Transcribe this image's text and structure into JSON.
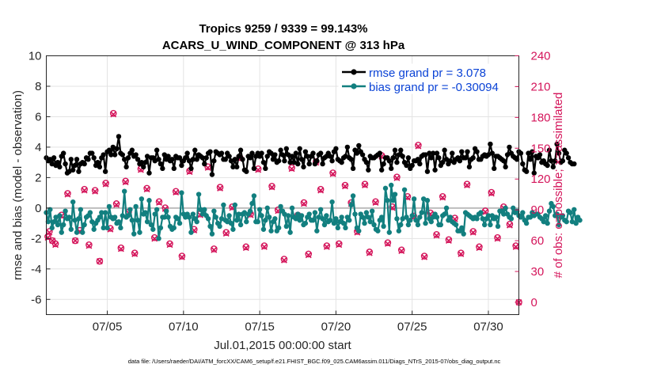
{
  "chart_data": {
    "type": "line",
    "title": "Tropics 9259 / 9339 = 99.143%",
    "subtitle": "ACARS_U_WIND_COMPONENT @ 313 hPa",
    "xlabel": "Jul.01,2015 00:00:00 start",
    "ylabel": "rmse and bias (model - observation)",
    "y2label": "# of obs: o=possible; ×=assimilated",
    "footnote": "data file: /Users/raeder/DAI/ATM_forcXX/CAM6_setup/f.e21.FHIST_BGC.f09_025.CAM6assim.011/Diags_NTrS_2015-07/obs_diag_output.nc",
    "xlim": [
      1,
      32
    ],
    "ylim": [
      -7,
      10
    ],
    "y2lim": [
      -12,
      240
    ],
    "x_ticks": [
      5,
      10,
      15,
      20,
      25,
      30
    ],
    "x_tick_labels": [
      "07/05",
      "07/10",
      "07/15",
      "07/20",
      "07/25",
      "07/30"
    ],
    "y_ticks": [
      -6,
      -4,
      -2,
      0,
      2,
      4,
      6,
      8,
      10
    ],
    "y_tick_labels": [
      "-6",
      "-4",
      "-2",
      "0",
      "2",
      "4",
      "6",
      "8",
      "10"
    ],
    "y2_ticks": [
      0,
      30,
      60,
      90,
      120,
      150,
      180,
      210,
      240
    ],
    "y2_tick_labels": [
      "0",
      "30",
      "60",
      "90",
      "120",
      "150",
      "180",
      "210",
      "240"
    ],
    "grid": true,
    "legend_position": "top-right",
    "colors": {
      "rmse": "#000000",
      "bias": "#127f7f",
      "obs": "#d4145a",
      "zero_line": "#bdbdbd",
      "legend_text": "#0b43d6"
    },
    "series": [
      {
        "name": "rmse grand pr = 3.078",
        "axis": "left",
        "color": "#000000",
        "marker": "filled-circle",
        "x_start": 1.0,
        "x_step": 0.125,
        "values": [
          3.3,
          3.1,
          3.2,
          2.9,
          3.3,
          2.8,
          3.0,
          2.7,
          3.4,
          3.6,
          2.9,
          2.3,
          2.4,
          3.2,
          2.5,
          2.8,
          3.2,
          2.4,
          2.9,
          3.0,
          2.9,
          3.3,
          3.2,
          3.6,
          3.6,
          3.3,
          2.8,
          3.0,
          2.7,
          3.3,
          3.5,
          2.4,
          3.7,
          3.8,
          3.5,
          4.0,
          3.5,
          3.9,
          4.7,
          3.6,
          3.5,
          3.2,
          2.7,
          3.3,
          3.6,
          3.8,
          3.4,
          3.5,
          3.2,
          2.9,
          3.0,
          2.7,
          3.0,
          3.4,
          2.3,
          3.3,
          3.3,
          3.1,
          3.8,
          3.2,
          2.9,
          2.6,
          3.5,
          3.2,
          3.4,
          3.1,
          3.2,
          2.6,
          3.4,
          3.3,
          3.3,
          2.8,
          3.1,
          3.3,
          3.6,
          3.1,
          2.6,
          3.2,
          3.8,
          3.2,
          3.5,
          3.4,
          3.3,
          2.9,
          3.3,
          3.6,
          3.7,
          2.2,
          3.1,
          3.7,
          3.6,
          3.5,
          3.6,
          3.2,
          3.2,
          3.6,
          3.4,
          3.1,
          2.7,
          3.2,
          2.7,
          3.4,
          3.8,
          3.2,
          2.5,
          2.4,
          3.4,
          3.3,
          3.6,
          2.6,
          3.4,
          3.6,
          3.4,
          3.6,
          3.0,
          2.6,
          3.4,
          3.7,
          3.6,
          3.2,
          3.5,
          3.0,
          3.1,
          3.8,
          3.5,
          3.1,
          3.9,
          3.5,
          3.0,
          3.4,
          3.0,
          3.6,
          2.9,
          3.9,
          3.2,
          2.7,
          3.7,
          3.4,
          2.9,
          3.4,
          3.6,
          2.9,
          3.1,
          3.5,
          3.6,
          2.9,
          3.3,
          3.4,
          3.6,
          3.4,
          3.1,
          3.7,
          3.9,
          3.2,
          3.1,
          3.0,
          3.3,
          3.4,
          4.0,
          3.3,
          3.2,
          2.6,
          3.8,
          3.6,
          4.1,
          3.7,
          3.5,
          3.2,
          3.0,
          2.5,
          3.4,
          3.3,
          3.3,
          3.4,
          3.5,
          3.6,
          2.5,
          2.9,
          3.3,
          3.3,
          3.1,
          2.6,
          3.3,
          3.8,
          3.0,
          3.5,
          3.8,
          3.4,
          3.0,
          2.8,
          3.3,
          2.6,
          2.8,
          3.1,
          3.1,
          3.2,
          2.9,
          3.4,
          3.5,
          3.5,
          2.4,
          3.6,
          3.3,
          3.6,
          2.5,
          3.6,
          3.3,
          2.8,
          3.0,
          3.8,
          3.2,
          2.9,
          3.1,
          3.6,
          3.0,
          3.2,
          3.3,
          3.1,
          3.7,
          3.3,
          3.3,
          3.7,
          2.7,
          3.2,
          3.3,
          3.9,
          3.7,
          3.2,
          3.2,
          3.4,
          3.5,
          3.4,
          3.5,
          4.2,
          3.6,
          2.6,
          3.4,
          3.4,
          3.3,
          3.2,
          3.1,
          2.7,
          3.5,
          4.0,
          3.6,
          3.4,
          3.3,
          3.2,
          3.7,
          3.6,
          2.9,
          2.5,
          2.4,
          3.6,
          3.2,
          3.7,
          2.3,
          3.4,
          3.3,
          3.5,
          3.0,
          3.1,
          2.9,
          2.8,
          3.8,
          3.1,
          2.7,
          3.1,
          4.2,
          3.6,
          3.0,
          3.1,
          3.8,
          3.6,
          3.3,
          3.0,
          2.9,
          2.9
        ]
      },
      {
        "name": "bias grand pr = -0.30094",
        "axis": "left",
        "color": "#127f7f",
        "marker": "filled-circle",
        "x_start": 1.0,
        "x_step": 0.125,
        "values": [
          -0.3,
          -0.9,
          -0.1,
          -1.3,
          -0.9,
          -0.6,
          -1.1,
          -0.5,
          -1.6,
          -1.1,
          -0.2,
          -0.7,
          -0.6,
          -1.4,
          0.4,
          -0.8,
          -1.6,
          -0.7,
          -0.1,
          -1.6,
          -1.1,
          -0.6,
          -0.5,
          -0.3,
          -0.9,
          -1.4,
          -1.0,
          -0.8,
          -0.6,
          -0.3,
          -1.3,
          -0.3,
          -1.3,
          0.1,
          -0.6,
          -0.7,
          -0.6,
          -1.0,
          -0.9,
          -1.3,
          -0.5,
          1.1,
          -0.6,
          -0.5,
          -0.1,
          -0.8,
          -1.7,
          0.1,
          -0.8,
          -1.6,
          0.6,
          -0.4,
          -0.3,
          -0.9,
          0.5,
          -1.1,
          -1.4,
          -0.4,
          -0.1,
          -2.0,
          -1.3,
          -0.6,
          -0.6,
          -0.2,
          -0.6,
          -1.2,
          -1.4,
          -1.3,
          -0.6,
          -0.7,
          -1.0,
          1.0,
          -0.4,
          -0.6,
          -0.4,
          -0.6,
          -1.6,
          -0.4,
          -0.7,
          -0.9,
          0.9,
          -0.1,
          -0.4,
          -0.1,
          -0.5,
          -0.7,
          -1.2,
          -1.7,
          -0.2,
          -0.6,
          -1.0,
          -1.2,
          -0.7,
          0.2,
          -0.8,
          -0.9,
          -0.5,
          -1.0,
          -1.4,
          0.2,
          -0.8,
          -0.4,
          -1.1,
          -0.4,
          -0.3,
          -0.9,
          -0.4,
          -0.2,
          0.3,
          0.8,
          -0.9,
          -0.9,
          -0.1,
          -0.5,
          -1.4,
          -0.8,
          0.0,
          -0.6,
          -1.5,
          -0.9,
          -0.7,
          -1.5,
          -1.3,
          0.1,
          -0.2,
          -0.4,
          -1.2,
          -0.5,
          -1.6,
          0.0,
          -0.6,
          -0.7,
          -0.4,
          -0.8,
          -0.5,
          -1.1,
          -1.0,
          -0.6,
          -0.4,
          -0.8,
          -0.8,
          -0.3,
          -1.5,
          -0.6,
          -0.1,
          -0.7,
          -1.1,
          -0.5,
          -0.9,
          -0.8,
          0.4,
          -1.0,
          -0.7,
          -1.3,
          -0.9,
          -0.6,
          -1.0,
          -1.3,
          -0.6,
          -0.8,
          0.2,
          0.8,
          -0.4,
          -1.3,
          -1.5,
          -0.4,
          -0.6,
          -1.0,
          -0.3,
          -0.6,
          -0.9,
          -0.2,
          -1.1,
          -1.4,
          -1.5,
          -0.8,
          -0.6,
          -1.2,
          1.3,
          0.5,
          -1.6,
          1.5,
          0.5,
          0.9,
          -0.7,
          -1.5,
          -1.1,
          -0.7,
          1.2,
          -0.6,
          -1.1,
          -0.8,
          -0.5,
          0.6,
          -0.8,
          -1.1,
          -0.6,
          -0.3,
          0.6,
          -1.0,
          0.5,
          -0.7,
          -0.9,
          -0.6,
          -0.4,
          -0.6,
          -1.1,
          -1.1,
          -0.5,
          -0.4,
          0.0,
          -0.8,
          -0.6,
          -0.9,
          -1.0,
          -1.1,
          -1.5,
          -1.5,
          -1.3,
          -1.7,
          -0.3,
          -0.4,
          -0.5,
          -0.6,
          -0.7,
          -0.6,
          -0.7,
          -0.4,
          -0.3,
          -0.7,
          -1.1,
          -0.7,
          -0.5,
          -1.1,
          -0.5,
          -0.7,
          -0.6,
          -1.2,
          -0.2,
          -0.2,
          -0.4,
          0.0,
          -0.4,
          -0.6,
          -0.7,
          0.0,
          -0.3,
          -0.2,
          -0.5,
          -0.6,
          -0.3,
          -0.8,
          -1.0,
          -0.6,
          -0.6,
          -0.3,
          -0.5,
          -0.4,
          -0.4,
          -0.6,
          -0.7,
          -0.9,
          -0.5,
          -1.0,
          -0.2,
          0.3,
          0.1,
          -0.5,
          -0.4,
          -1.1,
          -0.6,
          -0.5,
          -0.8,
          -0.9,
          -0.2,
          -0.3,
          -0.9,
          -0.1,
          -1.0,
          -0.6,
          -0.8
        ]
      },
      {
        "name": "# of obs possible",
        "axis": "right",
        "color": "#d4145a",
        "marker": "circle",
        "x": [
          1.1,
          1.2,
          1.4,
          1.6,
          2.0,
          2.4,
          2.9,
          3.2,
          3.5,
          3.8,
          4.2,
          4.5,
          4.9,
          5.2,
          5.4,
          5.6,
          5.9,
          6.2,
          6.4,
          6.8,
          7.2,
          7.6,
          8.1,
          8.4,
          8.8,
          9.1,
          9.5,
          9.9,
          10.4,
          10.7,
          11.1,
          11.6,
          12.0,
          12.4,
          12.8,
          13.2,
          13.7,
          14.1,
          14.4,
          14.9,
          15.3,
          15.8,
          16.2,
          16.6,
          17.1,
          17.5,
          17.9,
          18.2,
          18.7,
          19.0,
          19.4,
          19.8,
          20.2,
          20.6,
          21.0,
          21.4,
          21.9,
          22.2,
          22.6,
          23.0,
          23.4,
          23.7,
          24.0,
          24.3,
          24.7,
          25.1,
          25.4,
          25.8,
          26.2,
          26.6,
          27.0,
          27.4,
          27.8,
          28.2,
          28.6,
          29.0,
          29.4,
          29.8,
          30.2,
          30.6,
          31.0,
          31.4,
          31.8
        ],
        "values": [
          64,
          69,
          60,
          57,
          85,
          106,
          60,
          70,
          110,
          56,
          109,
          40,
          116,
          72,
          184,
          96,
          53,
          118,
          88,
          48,
          130,
          111,
          63,
          98,
          92,
          57,
          108,
          45,
          128,
          71,
          86,
          132,
          52,
          112,
          68,
          93,
          141,
          54,
          86,
          130,
          55,
          113,
          90,
          42,
          131,
          85,
          97,
          47,
          137,
          110,
          55,
          126,
          57,
          114,
          97,
          69,
          115,
          49,
          98,
          143,
          58,
          93,
          122,
          51,
          103,
          84,
          153,
          45,
          87,
          66,
          103,
          61,
          82,
          48,
          115,
          69,
          54,
          89,
          107,
          63,
          93,
          76,
          55
        ]
      },
      {
        "name": "# of obs assimilated",
        "axis": "right",
        "color": "#d4145a",
        "marker": "x",
        "x": [
          1.1,
          1.2,
          1.4,
          1.6,
          2.0,
          2.4,
          2.9,
          3.2,
          3.5,
          3.8,
          4.2,
          4.5,
          4.9,
          5.2,
          5.4,
          5.6,
          5.9,
          6.2,
          6.4,
          6.8,
          7.2,
          7.6,
          8.1,
          8.4,
          8.8,
          9.1,
          9.5,
          9.9,
          10.4,
          10.7,
          11.1,
          11.6,
          12.0,
          12.4,
          12.8,
          13.2,
          13.7,
          14.1,
          14.4,
          14.9,
          15.3,
          15.8,
          16.2,
          16.6,
          17.1,
          17.5,
          17.9,
          18.2,
          18.7,
          19.0,
          19.4,
          19.8,
          20.2,
          20.6,
          21.0,
          21.4,
          21.9,
          22.2,
          22.6,
          23.0,
          23.4,
          23.7,
          24.0,
          24.3,
          24.7,
          25.1,
          25.4,
          25.8,
          26.2,
          26.6,
          27.0,
          27.4,
          27.8,
          28.2,
          28.6,
          29.0,
          29.4,
          29.8,
          30.2,
          30.6,
          31.0,
          31.4,
          31.8
        ],
        "values": [
          63,
          68,
          60,
          56,
          84,
          105,
          60,
          69,
          109,
          55,
          108,
          40,
          115,
          71,
          183,
          95,
          52,
          117,
          87,
          47,
          129,
          110,
          62,
          97,
          91,
          56,
          107,
          44,
          127,
          70,
          85,
          131,
          51,
          111,
          67,
          92,
          140,
          53,
          85,
          129,
          54,
          112,
          89,
          41,
          130,
          84,
          96,
          46,
          136,
          109,
          54,
          125,
          56,
          113,
          96,
          68,
          114,
          48,
          97,
          142,
          57,
          92,
          121,
          50,
          102,
          83,
          152,
          44,
          86,
          65,
          102,
          60,
          81,
          47,
          114,
          68,
          53,
          88,
          106,
          62,
          92,
          75,
          54
        ]
      }
    ],
    "extra_points": [
      {
        "name": "# of obs possible (final)",
        "x": 32.0,
        "value": 0
      },
      {
        "name": "# of obs assimilated (final)",
        "x": 32.0,
        "value": 0
      }
    ]
  }
}
